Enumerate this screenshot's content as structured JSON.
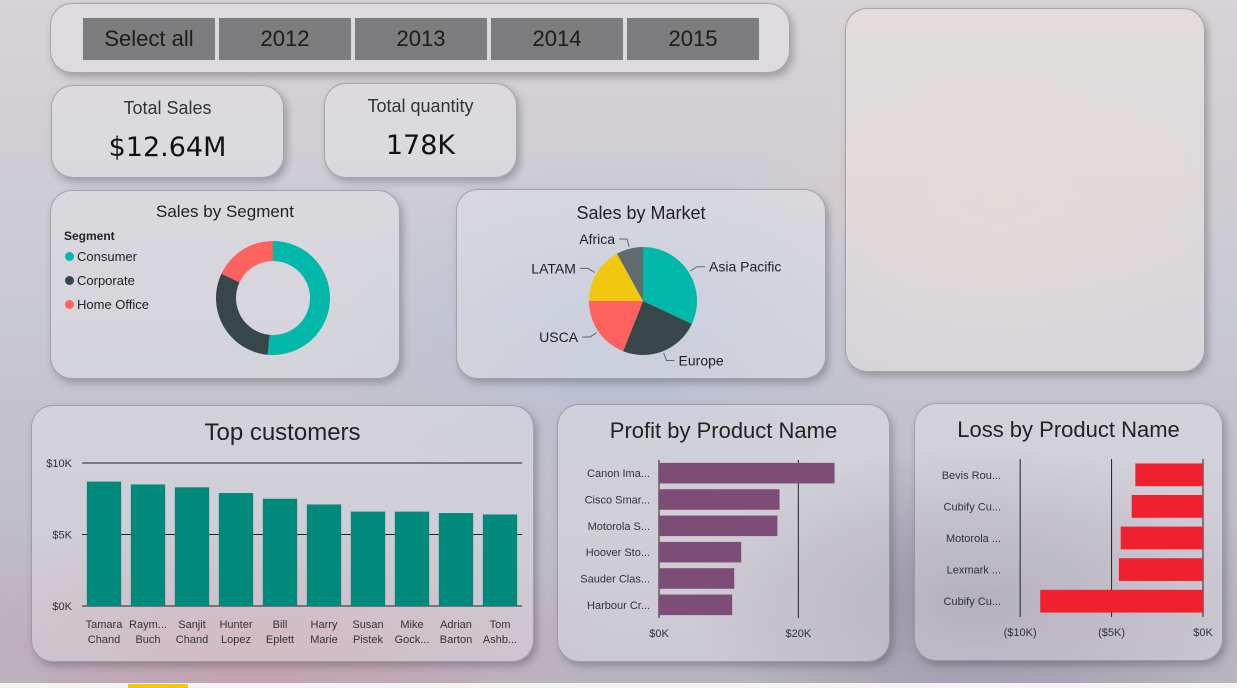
{
  "slicer": {
    "items": [
      "Select all",
      "2012",
      "2013",
      "2014",
      "2015"
    ]
  },
  "kpis": {
    "total_sales": {
      "label": "Total Sales",
      "value": "$12.64M"
    },
    "total_quantity": {
      "label": "Total quantity",
      "value": "178K"
    }
  },
  "segment_chart": {
    "title": "Sales by Segment",
    "legend_title": "Segment",
    "legend": [
      {
        "label": "Consumer",
        "color": "#01B8AA"
      },
      {
        "label": "Corporate",
        "color": "#374649"
      },
      {
        "label": "Home Office",
        "color": "#FD625E"
      }
    ]
  },
  "market_chart": {
    "title": "Sales by Market",
    "labels": [
      "Asia Pacific",
      "Europe",
      "USCA",
      "LATAM",
      "Africa"
    ]
  },
  "customers_chart": {
    "title": "Top customers",
    "y_ticks": [
      "$10K",
      "$5K",
      "$0K"
    ],
    "names": [
      [
        "Tamara",
        "Chand"
      ],
      [
        "Raym...",
        "Buch"
      ],
      [
        "Sanjit",
        "Chand"
      ],
      [
        "Hunter",
        "Lopez"
      ],
      [
        "Bill",
        "Eplett"
      ],
      [
        "Harry",
        "Marie"
      ],
      [
        "Susan",
        "Pistek"
      ],
      [
        "Mike",
        "Gock..."
      ],
      [
        "Adrian",
        "Barton"
      ],
      [
        "Tom",
        "Ashb..."
      ]
    ]
  },
  "profit_chart": {
    "title": "Profit by Product Name",
    "categories": [
      "Canon Ima...",
      "Cisco Smar...",
      "Motorola S...",
      "Hoover Sto...",
      "Sauder Clas...",
      "Harbour Cr..."
    ],
    "x_ticks": [
      "$0K",
      "$20K"
    ]
  },
  "loss_chart": {
    "title": "Loss by Product Name",
    "categories": [
      "Bevis Rou...",
      "Cubify Cu...",
      "Motorola ...",
      "Lexmark ...",
      "Cubify Cu..."
    ],
    "x_ticks": [
      "($10K)",
      "($5K)",
      "$0K"
    ]
  },
  "chart_data": [
    {
      "type": "pie",
      "title": "Sales by Segment",
      "legend_title": "Segment",
      "donut": true,
      "categories": [
        "Consumer",
        "Corporate",
        "Home Office"
      ],
      "values": [
        51.5,
        30.5,
        18.0
      ],
      "colors": [
        "#01B8AA",
        "#374649",
        "#FD625E"
      ],
      "legend_position": "left"
    },
    {
      "type": "pie",
      "title": "Sales by Market",
      "categories": [
        "Asia Pacific",
        "Europe",
        "USCA",
        "LATAM",
        "Africa"
      ],
      "values": [
        32.0,
        24.0,
        19.0,
        17.0,
        8.0
      ],
      "colors": [
        "#01B8AA",
        "#374649",
        "#FD625E",
        "#F2C80F",
        "#5F6B6D"
      ]
    },
    {
      "type": "bar",
      "title": "Top customers",
      "categories": [
        "Tamara Chand",
        "Raym... Buch",
        "Sanjit Chand",
        "Hunter Lopez",
        "Bill Eplett",
        "Harry Marie",
        "Susan Pistek",
        "Mike Gock...",
        "Adrian Barton",
        "Tom Ashb..."
      ],
      "values": [
        8700,
        8500,
        8300,
        7900,
        7500,
        7100,
        6600,
        6600,
        6500,
        6400
      ],
      "ylim": [
        0,
        10000
      ],
      "y_ticks": [
        0,
        5000,
        10000
      ],
      "grid": true,
      "color": "#01897C"
    },
    {
      "type": "bar",
      "orientation": "horizontal",
      "title": "Profit by Product Name",
      "categories": [
        "Canon Ima...",
        "Cisco Smar...",
        "Motorola S...",
        "Hoover Sto...",
        "Sauder Clas...",
        "Harbour Cr..."
      ],
      "values": [
        25200,
        17300,
        17000,
        11800,
        10800,
        10500
      ],
      "xlim": [
        0,
        30000
      ],
      "x_ticks": [
        0,
        20000
      ],
      "color": "#7E4D77"
    },
    {
      "type": "bar",
      "orientation": "horizontal",
      "title": "Loss by Product Name",
      "categories": [
        "Bevis Rou...",
        "Cubify Cu...",
        "Motorola ...",
        "Lexmark ...",
        "Cubify Cu..."
      ],
      "values": [
        -3700,
        -3900,
        -4500,
        -4600,
        -8900
      ],
      "xlim": [
        -10500,
        0
      ],
      "x_ticks": [
        -10000,
        -5000,
        0
      ],
      "color": "#F0202F"
    }
  ]
}
